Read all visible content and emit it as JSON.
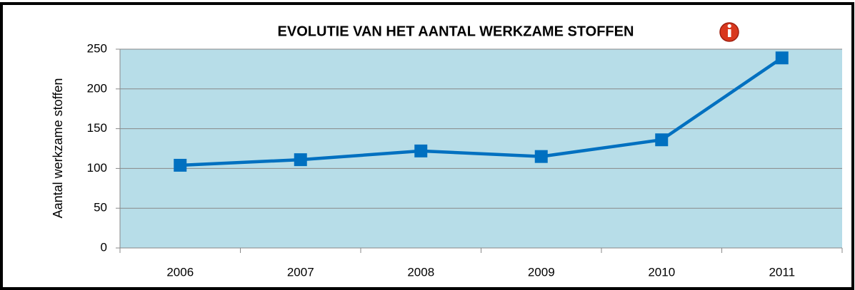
{
  "chart_data": {
    "type": "line",
    "title": "EVOLUTIE VAN HET AANTAL WERKZAME STOFFEN",
    "y_label": "Aantal werkzame stoffen",
    "categories": [
      "2006",
      "2007",
      "2008",
      "2009",
      "2010",
      "2011"
    ],
    "series": [
      {
        "name": "Aantal werkzame stoffen",
        "color": "#0070c0",
        "values": [
          104,
          111,
          122,
          115,
          136,
          239
        ]
      }
    ],
    "ylim": [
      0,
      250
    ],
    "yticks": [
      0,
      50,
      100,
      150,
      200,
      250
    ],
    "grid": true,
    "plot_background": "#b7dde8"
  }
}
